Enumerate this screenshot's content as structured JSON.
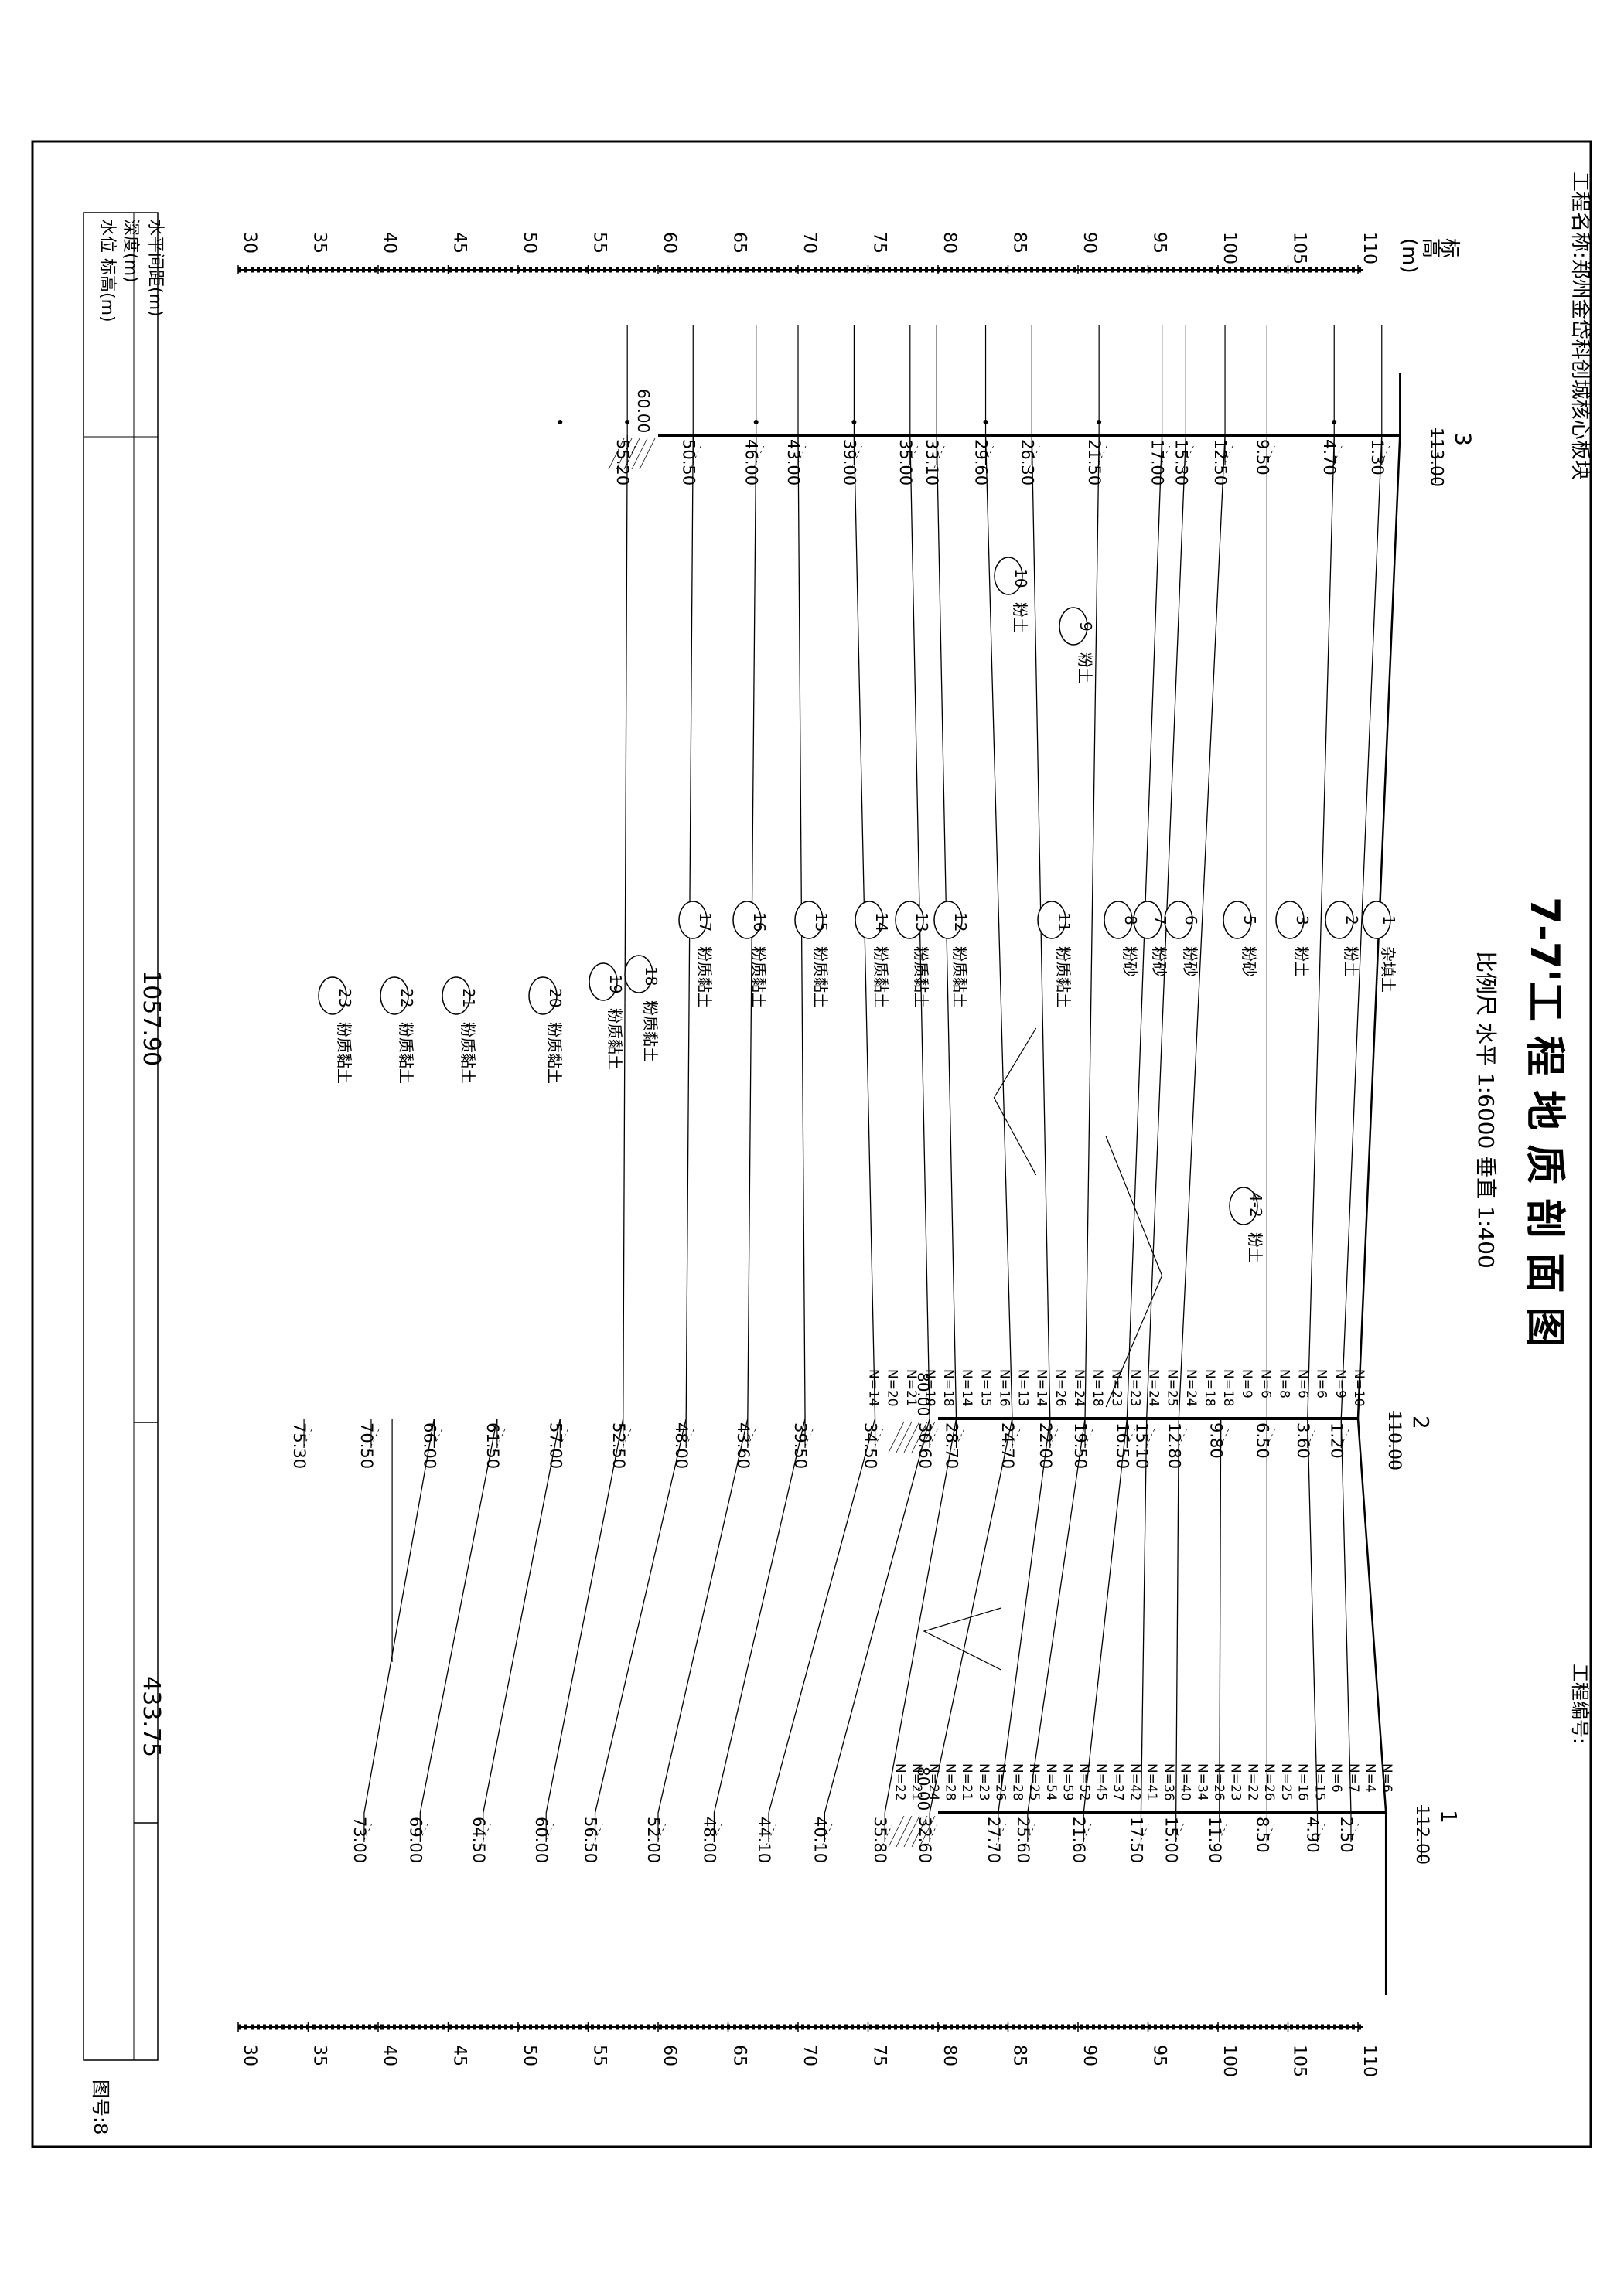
{
  "title": "7-7'工 程 地 质 剖 面 图",
  "scale_text": "比例尺  水平 1:6000    垂直 1:400",
  "project_name": "工程名称:郑州金岱科创城核心板块",
  "project_no": "工程编号:",
  "figure_no": "图号:8",
  "elev_unit_label": [
    "标",
    "高",
    "(m)"
  ],
  "elevation_ticks": [
    "110",
    "105",
    "100",
    "95",
    "90",
    "85",
    "80",
    "75",
    "70",
    "65",
    "60",
    "55",
    "50",
    "45",
    "40",
    "35",
    "30"
  ],
  "table_row_labels": [
    "水平间距(m)",
    "深度(m)",
    "水位  标高(m)"
  ],
  "horizontal_spacings": [
    "1057.90",
    "433.75"
  ],
  "boreholes": [
    {
      "id": "3",
      "elevation": "113.00",
      "bottom_elev": "60.00",
      "depths": [
        "1.30",
        "4.70",
        "9.50",
        "12.50",
        "15.30",
        "17.00",
        "21.50",
        "26.30",
        "29.60",
        "33.10",
        "35.00",
        "39.00",
        "43.00",
        "46.00",
        "50.50",
        "55.20"
      ],
      "spt": [],
      "sample_depths": [
        4.7,
        21.5,
        29.6,
        39.0,
        46.0,
        55.2,
        60.0
      ]
    },
    {
      "id": "2",
      "elevation": "110.00",
      "bottom_elev": "80.00",
      "depths": [
        "1.20",
        "3.60",
        "6.50",
        "9.80",
        "12.80",
        "15.10",
        "16.50",
        "19.50",
        "22.00",
        "24.70",
        "28.70",
        "30.60",
        "34.50",
        "39.50",
        "43.60",
        "48.00",
        "52.50",
        "57.00",
        "61.50",
        "66.00",
        "70.50",
        "75.30"
      ],
      "spt": [
        "N=10",
        "N=9",
        "N=6",
        "N=6",
        "N=8",
        "N=6",
        "N=9",
        "N=18",
        "N=18",
        "N=24",
        "N=25",
        "N=24",
        "N=23",
        "N=23",
        "N=18",
        "N=24",
        "N=26",
        "N=14",
        "N=13",
        "N=16",
        "N=15",
        "N=14",
        "N=18",
        "N=19",
        "N=21",
        "N=20",
        "N=14"
      ],
      "sample_depths": []
    },
    {
      "id": "1",
      "elevation": "112.00",
      "bottom_elev": "80.00",
      "depths": [
        "2.50",
        "4.90",
        "8.50",
        "11.90",
        "15.00",
        "17.50",
        "21.60",
        "25.60",
        "27.70",
        "32.60",
        "35.80",
        "40.10",
        "44.10",
        "48.00",
        "52.00",
        "56.50",
        "60.00",
        "64.50",
        "69.00",
        "73.00"
      ],
      "spt": [
        "N=6",
        "N=4",
        "N=7",
        "N=6",
        "N=15",
        "N=16",
        "N=25",
        "N=26",
        "N=22",
        "N=23",
        "N=26",
        "N=34",
        "N=40",
        "N=36",
        "N=41",
        "N=42",
        "N=37",
        "N=45",
        "N=52",
        "N=59",
        "N=54",
        "N=25",
        "N=28",
        "N=26",
        "N=23",
        "N=21",
        "N=28",
        "N=24",
        "N=21",
        "N=22"
      ],
      "sample_depths": []
    }
  ],
  "layers": [
    {
      "id": "1",
      "name": "杂填土"
    },
    {
      "id": "2",
      "name": "粉土"
    },
    {
      "id": "3",
      "name": "粉土"
    },
    {
      "id": "4-2",
      "name": "粉土"
    },
    {
      "id": "5",
      "name": "粉砂"
    },
    {
      "id": "6",
      "name": "粉砂"
    },
    {
      "id": "7",
      "name": "粉砂"
    },
    {
      "id": "8",
      "name": "粉砂"
    },
    {
      "id": "9",
      "name": "粉土"
    },
    {
      "id": "10",
      "name": "粉土"
    },
    {
      "id": "11",
      "name": "粉质黏土"
    },
    {
      "id": "12",
      "name": "粉质黏土"
    },
    {
      "id": "13",
      "name": "粉质黏土"
    },
    {
      "id": "14",
      "name": "粉质黏土"
    },
    {
      "id": "15",
      "name": "粉质黏土"
    },
    {
      "id": "16",
      "name": "粉质黏土"
    },
    {
      "id": "17",
      "name": "粉质黏土"
    },
    {
      "id": "18",
      "name": "粉质黏土"
    },
    {
      "id": "19",
      "name": "粉质黏土"
    },
    {
      "id": "20",
      "name": "粉质黏土"
    },
    {
      "id": "21",
      "name": "粉质黏土"
    },
    {
      "id": "22",
      "name": "粉质黏土"
    },
    {
      "id": "23",
      "name": "粉质黏土"
    }
  ]
}
